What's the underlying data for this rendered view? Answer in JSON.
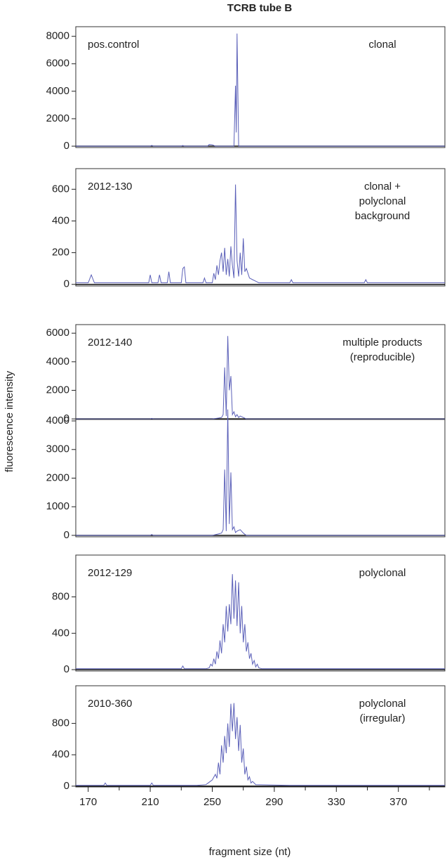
{
  "title": "TCRB tube B",
  "y_label": "fluorescence intensity",
  "chart_data": [
    {
      "type": "line",
      "label": "pos.control",
      "annotation": [
        "clonal"
      ],
      "color": "#5a5fb8",
      "xlim": [
        162,
        400
      ],
      "ylim": [
        -100,
        8700
      ],
      "yticks": [
        0,
        2000,
        4000,
        6000,
        8000
      ],
      "x": [
        162,
        190,
        210,
        211,
        212,
        230,
        231,
        232,
        247,
        248,
        250,
        252,
        264,
        265,
        265.5,
        266,
        267,
        300,
        400
      ],
      "values": [
        0,
        0,
        0,
        60,
        0,
        0,
        50,
        0,
        0,
        120,
        100,
        0,
        0,
        4400,
        1000,
        8200,
        0,
        0,
        0
      ]
    },
    {
      "type": "line",
      "label": "2012-130",
      "annotation": [
        "clonal +",
        "polyclonal",
        "background"
      ],
      "color": "#5a5fb8",
      "xlim": [
        162,
        400
      ],
      "ylim": [
        -10,
        730
      ],
      "yticks": [
        0,
        200,
        400,
        600
      ],
      "x": [
        162,
        170,
        172,
        174,
        190,
        209,
        210,
        211,
        215,
        216,
        217,
        221,
        222,
        223,
        230,
        231,
        232,
        233,
        244,
        245,
        246,
        250,
        251,
        252,
        253,
        254,
        255,
        256,
        257,
        258,
        259,
        260,
        261,
        262,
        263,
        264,
        265,
        266,
        267,
        268,
        269,
        270,
        271,
        272,
        274,
        276,
        278,
        280,
        300,
        301,
        302,
        348,
        349,
        350,
        400
      ],
      "values": [
        10,
        10,
        60,
        10,
        10,
        10,
        60,
        10,
        10,
        60,
        10,
        10,
        80,
        10,
        10,
        100,
        110,
        10,
        10,
        40,
        10,
        10,
        70,
        30,
        120,
        60,
        150,
        200,
        80,
        230,
        60,
        160,
        50,
        240,
        120,
        40,
        630,
        150,
        50,
        200,
        60,
        290,
        80,
        100,
        40,
        30,
        20,
        10,
        10,
        30,
        10,
        10,
        30,
        10,
        10
      ]
    },
    {
      "type": "line",
      "label": "2012-140",
      "annotation": [
        "multiple products",
        "(reproducible)"
      ],
      "color": "#5a5fb8",
      "xlim": [
        162,
        400
      ],
      "ylim": [
        -40,
        6600
      ],
      "yticks": [
        0,
        2000,
        4000,
        6000
      ],
      "x": [
        162,
        210,
        211,
        212,
        250,
        254,
        256,
        257,
        258,
        259,
        260,
        261,
        262,
        263,
        264,
        265,
        266,
        267,
        268,
        270,
        272,
        400
      ],
      "values": [
        0,
        0,
        40,
        0,
        0,
        60,
        100,
        300,
        3600,
        200,
        5800,
        2000,
        3000,
        300,
        500,
        150,
        300,
        100,
        200,
        100,
        0,
        0
      ]
    },
    {
      "type": "line",
      "color": "#5a5fb8",
      "xlim": [
        162,
        400
      ],
      "ylim": [
        -50,
        4050
      ],
      "yticks": [
        0,
        1000,
        2000,
        3000,
        4000
      ],
      "x": [
        162,
        210,
        211,
        212,
        250,
        254,
        256,
        257,
        258,
        259,
        260,
        261,
        262,
        263,
        264,
        265,
        266,
        268,
        270,
        272,
        400
      ],
      "values": [
        0,
        0,
        30,
        0,
        0,
        50,
        80,
        200,
        2300,
        150,
        4400,
        400,
        2200,
        200,
        300,
        100,
        150,
        200,
        80,
        0,
        0
      ]
    },
    {
      "type": "line",
      "label": "2012-129",
      "annotation": [
        "polyclonal"
      ],
      "color": "#5a5fb8",
      "xlim": [
        162,
        400
      ],
      "ylim": [
        -15,
        1260
      ],
      "yticks": [
        0,
        400,
        800
      ],
      "x": [
        162,
        200,
        230,
        231,
        232,
        246,
        248,
        249,
        250,
        251,
        252,
        253,
        254,
        255,
        256,
        257,
        258,
        259,
        260,
        261,
        262,
        263,
        264,
        265,
        266,
        267,
        268,
        269,
        270,
        271,
        272,
        273,
        274,
        275,
        276,
        277,
        278,
        279,
        280,
        282,
        300,
        400
      ],
      "values": [
        10,
        10,
        10,
        40,
        10,
        10,
        20,
        60,
        40,
        120,
        60,
        200,
        120,
        320,
        180,
        500,
        300,
        700,
        420,
        720,
        500,
        1050,
        560,
        980,
        480,
        960,
        400,
        700,
        300,
        500,
        200,
        300,
        120,
        180,
        60,
        100,
        30,
        60,
        20,
        10,
        10,
        10
      ]
    },
    {
      "type": "line",
      "label": "2010-360",
      "annotation": [
        "polyclonal",
        "(irregular)"
      ],
      "color": "#5a5fb8",
      "xlim": [
        162,
        400
      ],
      "ylim": [
        -10,
        1280
      ],
      "yticks": [
        0,
        400,
        800
      ],
      "x": [
        162,
        180,
        181,
        182,
        210,
        211,
        212,
        240,
        246,
        248,
        250,
        252,
        253,
        254,
        255,
        256,
        257,
        258,
        259,
        260,
        261,
        262,
        263,
        264,
        265,
        266,
        267,
        268,
        269,
        270,
        271,
        272,
        273,
        274,
        275,
        276,
        278,
        300,
        400
      ],
      "values": [
        10,
        10,
        40,
        10,
        10,
        40,
        10,
        10,
        20,
        50,
        80,
        150,
        100,
        300,
        150,
        520,
        300,
        640,
        420,
        800,
        500,
        1050,
        700,
        1060,
        600,
        880,
        450,
        780,
        300,
        480,
        150,
        250,
        80,
        120,
        40,
        60,
        20,
        10,
        10
      ],
      "xticks": [
        170,
        210,
        250,
        290,
        330,
        370
      ],
      "xminor_ticks": [
        190,
        230,
        270,
        310,
        350,
        390
      ],
      "x_label": "fragment size (nt)"
    }
  ]
}
